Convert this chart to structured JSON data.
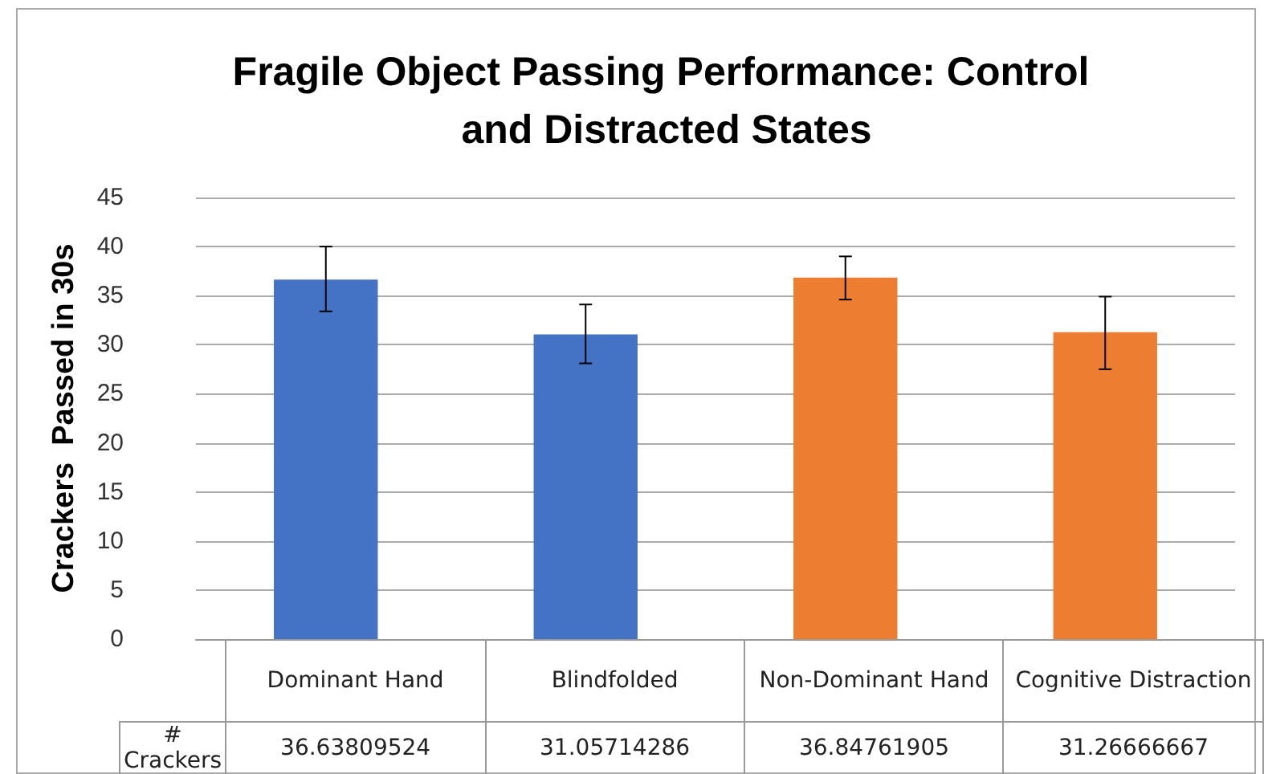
{
  "chart_data": {
    "type": "bar",
    "title": "Fragile Object Passing Performance: Control and Distracted States",
    "ylabel": "Crackers  Passed in 30s",
    "categories": [
      "Dominant Hand",
      "Blindfolded",
      "Non-Dominant Hand",
      "Cognitive Distraction"
    ],
    "series": [
      {
        "name": "# Crackers",
        "colors": [
          "#4472c4",
          "#4472c4",
          "#ed7d31",
          "#ed7d31"
        ],
        "values": [
          36.63809524,
          31.05714286,
          36.84761905,
          31.26666667
        ],
        "errors": [
          [
            33.4,
            40.0
          ],
          [
            28.1,
            34.1
          ],
          [
            34.6,
            39.0
          ],
          [
            27.5,
            34.9
          ]
        ]
      }
    ],
    "data_labels": true,
    "ylim": [
      0,
      45
    ],
    "yticks": [
      0,
      5,
      10,
      15,
      20,
      25,
      30,
      35,
      40,
      45
    ],
    "grid": "y",
    "legend": false
  }
}
